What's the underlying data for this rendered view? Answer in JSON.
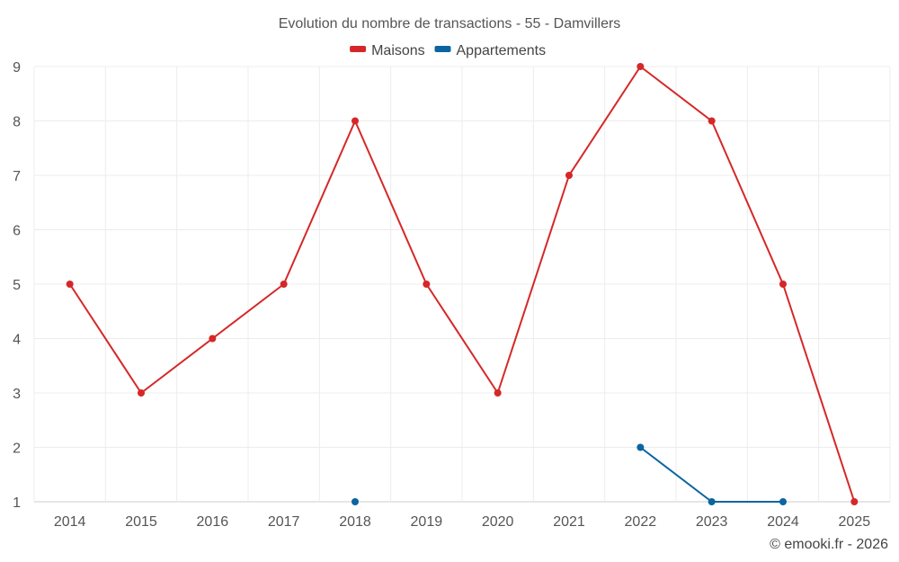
{
  "chart_data": {
    "type": "line",
    "title": "Evolution du nombre de transactions - 55 - Damvillers",
    "categories": [
      "2014",
      "2015",
      "2016",
      "2017",
      "2018",
      "2019",
      "2020",
      "2021",
      "2022",
      "2023",
      "2024",
      "2025"
    ],
    "series": [
      {
        "name": "Maisons",
        "color": "#d62728",
        "values": [
          5,
          3,
          4,
          5,
          8,
          5,
          3,
          7,
          9,
          8,
          5,
          1
        ]
      },
      {
        "name": "Appartements",
        "color": "#0b65a0",
        "values": [
          null,
          null,
          null,
          null,
          1,
          null,
          null,
          null,
          2,
          1,
          1,
          null
        ]
      }
    ],
    "ylim": [
      1,
      9
    ],
    "yticks": [
      1,
      2,
      3,
      4,
      5,
      6,
      7,
      8,
      9
    ],
    "xlabel": "",
    "ylabel": "",
    "grid": true,
    "legend": "top-center"
  },
  "credit": "© emooki.fr - 2026"
}
